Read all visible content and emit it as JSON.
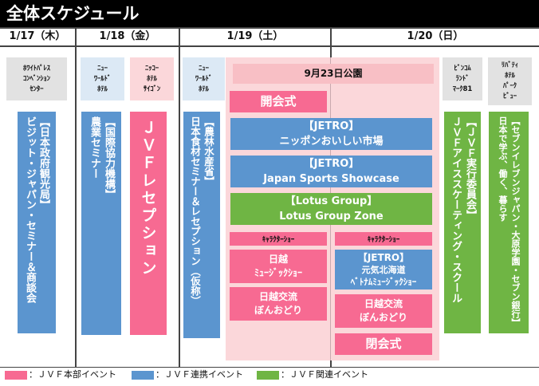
{
  "title": "全体スケジュール",
  "days": [
    "1/17（木）",
    "1/18（金）",
    "1/19（土）",
    "1/20（日）"
  ],
  "holiday_label": "9月23日公園",
  "venues": {
    "white_palace": "ﾎﾜｲﾄﾊﾟﾚｽ\nｺﾝﾍﾞﾝｼｮﾝ\nｾﾝﾀｰ",
    "new_world_18": "ﾆｭｰ\nﾜｰﾙﾄﾞ\nﾎﾃﾙ",
    "nikko_saigon": "ﾆｯｺｰ\nﾎﾃﾙ\nｻｲｺﾞﾝ",
    "new_world_19": "ﾆｭｰ\nﾜｰﾙﾄﾞ\nﾎﾃﾙ",
    "bitexco": "ﾋﾞﾝｺﾑ\nﾗﾝﾄﾞ\nﾏｰｸ81",
    "liberty": "ﾘﾊﾞﾃｨ\nﾎﾃﾙ\nﾊﾟｰｸ\nﾋﾞｭｰ"
  },
  "events": {
    "visit_japan": "【日本政府観光局】\nビジット・ジャパン・セミナー＆商談会",
    "agri_seminar": "【国際協力機構】\n農業セミナー",
    "jvf_reception": "ＪＶＦレセプション",
    "food_seminar": "【農林水産省】\n日本食材セミナー＆レセプション（仮称）",
    "opening": "開会式",
    "jetro_market_org": "【JETRO】",
    "jetro_market": "ニッポンおいしい市場",
    "jetro_sports_org": "【JETRO】",
    "jetro_sports": "Japan Sports Showcase",
    "lotus_org": "【Lotus Group】",
    "lotus": "Lotus Group Zone",
    "char_show_1": "ｷｬﾗｸﾀｰｼｮｰ",
    "char_show_2": "ｷｬﾗｸﾀｰｼｮｰ",
    "nichietsu_musical": "日越\nﾐｭｰｼﾞｯｸｼｮｰ",
    "jetro_hokkaido_org": "【JETRO】",
    "jetro_hokkaido": "元気北海道\nﾍﾞﾄﾅﾑﾐｭｰｼﾞｯｸｼｮｰ",
    "bon_odori_1": "日越交流\nぼんおどり",
    "bon_odori_2": "日越交流\nぼんおどり",
    "closing": "閉会式",
    "ice_skating": "【ＪＶＦ実行委員会】\nＪＶＦアイススケーティング・スクール",
    "seven_eleven": "【セブンイレブンジャパン・大原学園・セブン銀行】\n日本で学ぶ、働く、暮らす"
  },
  "legend": [
    {
      "label": "：ＪＶＦ本部イベント",
      "color": "#f76a92"
    },
    {
      "label": "：ＪＶＦ連携イベント",
      "color": "#5b95cf"
    },
    {
      "label": "：ＪＶＦ関連イベント",
      "color": "#6fb544"
    }
  ]
}
